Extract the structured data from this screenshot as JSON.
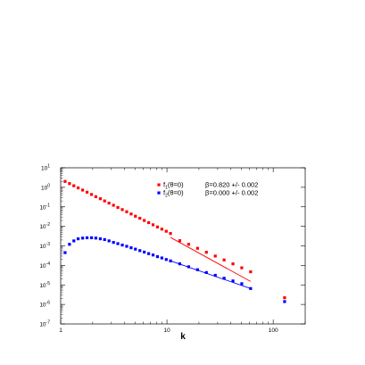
{
  "chart_data": {
    "type": "scatter",
    "xscale": "log",
    "yscale": "log",
    "xlim": [
      1,
      200
    ],
    "ylim": [
      1e-07,
      10
    ],
    "xlabel": "k",
    "ylabel": "",
    "grid": false,
    "legend_position": "top-right",
    "x_ticks": [
      {
        "value": 1,
        "label": "1"
      },
      {
        "value": 10,
        "label": "10"
      },
      {
        "value": 100,
        "label": "100"
      }
    ],
    "y_ticks": [
      {
        "exp": 1,
        "base": "10",
        "sup": "1"
      },
      {
        "exp": 0,
        "base": "10",
        "sup": "0"
      },
      {
        "exp": -1,
        "base": "10",
        "sup": "-1"
      },
      {
        "exp": -2,
        "base": "10",
        "sup": "-2"
      },
      {
        "exp": -3,
        "base": "10",
        "sup": "-3"
      },
      {
        "exp": -4,
        "base": "10",
        "sup": "-4"
      },
      {
        "exp": -5,
        "base": "10",
        "sup": "-5"
      },
      {
        "exp": -6,
        "base": "10",
        "sup": "-6"
      },
      {
        "exp": -7,
        "base": "10",
        "sup": "-7"
      }
    ],
    "series": [
      {
        "name": "f1(θ=0)",
        "legend_main": "f",
        "legend_sub": "1",
        "legend_rest": "(θ=0)",
        "fit_label": "β=0.820 +/- 0.002",
        "color": "#ff0000",
        "x": [
          1.1,
          1.21,
          1.33,
          1.46,
          1.61,
          1.77,
          1.95,
          2.14,
          2.36,
          2.59,
          2.85,
          3.14,
          3.45,
          3.8,
          4.18,
          4.6,
          5.05,
          5.56,
          6.12,
          6.73,
          7.4,
          8.14,
          8.95,
          9.85,
          10.8,
          13.2,
          16.0,
          19.4,
          23.5,
          28.5,
          34.5,
          41.8,
          50.6,
          61.3,
          128
        ],
        "y": [
          2.0,
          1.55,
          1.2,
          0.93,
          0.72,
          0.56,
          0.43,
          0.33,
          0.26,
          0.2,
          0.155,
          0.12,
          0.093,
          0.072,
          0.056,
          0.043,
          0.033,
          0.026,
          0.02,
          0.0155,
          0.012,
          0.0093,
          0.0072,
          0.0056,
          0.0043,
          0.00185,
          0.0012,
          0.00075,
          0.00047,
          0.0003,
          0.00019,
          0.00012,
          7.5e-05,
          4.7e-05,
          2.2e-06
        ],
        "fit_x": [
          10.8,
          61.3
        ],
        "fit_y": [
          0.0027,
          1.5e-05
        ]
      },
      {
        "name": "f2(θ=0)",
        "legend_main": "f",
        "legend_sub": "2",
        "legend_rest": "(θ=0)",
        "fit_label": "β=0.000 +/- 0.002",
        "color": "#0000ff",
        "x": [
          1.1,
          1.21,
          1.33,
          1.46,
          1.61,
          1.77,
          1.95,
          2.14,
          2.36,
          2.59,
          2.85,
          3.14,
          3.45,
          3.8,
          4.18,
          4.6,
          5.05,
          5.56,
          6.12,
          6.73,
          7.4,
          8.14,
          8.95,
          9.85,
          10.8,
          13.2,
          16.0,
          19.4,
          23.5,
          28.5,
          34.5,
          41.8,
          50.6,
          61.3,
          128
        ],
        "y": [
          0.00045,
          0.0012,
          0.0018,
          0.0023,
          0.0025,
          0.0026,
          0.0026,
          0.0025,
          0.0023,
          0.0021,
          0.0018,
          0.0015,
          0.0013,
          0.0011,
          0.00095,
          0.0008,
          0.00068,
          0.00057,
          0.00048,
          0.0004,
          0.00034,
          0.00028,
          0.00024,
          0.0002,
          0.00017,
          0.00012,
          8.5e-05,
          6e-05,
          4.3e-05,
          3.1e-05,
          2.2e-05,
          1.6e-05,
          1.15e-05,
          6.5e-06,
          1.4e-06
        ],
        "fit_x": [
          10.8,
          61.3
        ],
        "fit_y": [
          0.00017,
          6.5e-06
        ]
      }
    ]
  }
}
